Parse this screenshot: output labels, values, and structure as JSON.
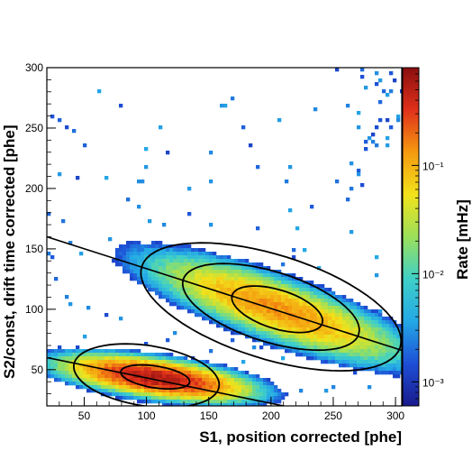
{
  "chart_data": {
    "type": "heatmap",
    "title": "",
    "xlabel": "S1, position corrected [phe]",
    "ylabel": "S2/const, drift time corrected [phe]",
    "zlabel": "Rate [mHz]",
    "xlim": [
      20,
      305
    ],
    "ylim": [
      20,
      300
    ],
    "zlim": [
      0.0006,
      0.8
    ],
    "z_scale": "log",
    "xticks": [
      "50",
      "100",
      "150",
      "200",
      "250",
      "300"
    ],
    "yticks": [
      "50",
      "100",
      "150",
      "200",
      "250",
      "300"
    ],
    "zticks": [
      {
        "value": 0.001,
        "label": "10⁻³"
      },
      {
        "value": 0.01,
        "label": "10⁻²"
      },
      {
        "value": 0.1,
        "label": "10⁻¹"
      }
    ],
    "colormap": [
      "#1a1a8c",
      "#1d4fd6",
      "#24a8e6",
      "#3fd0c8",
      "#9be05a",
      "#f2e21a",
      "#f59a10",
      "#e0301a",
      "#8a0f0f"
    ],
    "populations": [
      {
        "name": "lower",
        "center": [
          108,
          43
        ],
        "sigma_major": 30,
        "sigma_minor": 6,
        "angle_deg": -8,
        "peak_rate": 0.55
      },
      {
        "name": "upper",
        "center": [
          205,
          100
        ],
        "sigma_major": 45,
        "sigma_minor": 10,
        "angle_deg": -20,
        "peak_rate": 0.14
      }
    ],
    "lines": [
      {
        "x": [
          20,
          305
        ],
        "y": [
          160,
          66
        ]
      },
      {
        "x": [
          20,
          305
        ],
        "y": [
          60,
          0
        ]
      }
    ],
    "contours": [
      {
        "cx": 100,
        "cy": 45,
        "rx": 59,
        "ry": 25,
        "angle_deg": -9
      },
      {
        "cx": 107,
        "cy": 44,
        "rx": 28,
        "ry": 9,
        "angle_deg": -9
      },
      {
        "cx": 200,
        "cy": 102,
        "rx": 109,
        "ry": 43,
        "angle_deg": -18
      },
      {
        "cx": 200,
        "cy": 102,
        "rx": 74,
        "ry": 29,
        "angle_deg": -18
      },
      {
        "cx": 205,
        "cy": 100,
        "rx": 38,
        "ry": 16,
        "angle_deg": -18
      }
    ],
    "grid": false,
    "legend": "none"
  }
}
